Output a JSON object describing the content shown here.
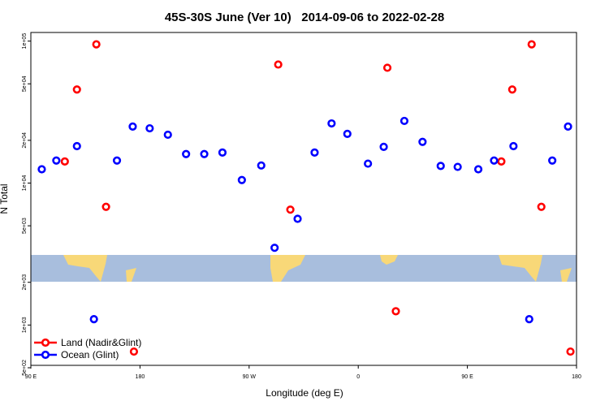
{
  "chart_data": {
    "type": "scatter",
    "title": "45S-30S June (Ver 10)   2014-09-06 to 2022-02-28",
    "x_label": "Longitude (deg E)",
    "y_label": "N Total",
    "log_y": true,
    "legend": "bottom-left",
    "xlim": [
      90,
      540
    ],
    "ylim": [
      520,
      115000
    ],
    "xticks": [
      {
        "value": 90,
        "label": "90 E"
      },
      {
        "value": 180,
        "label": "180"
      },
      {
        "value": 270,
        "label": "90 W"
      },
      {
        "value": 360,
        "label": "0"
      },
      {
        "value": 450,
        "label": "90 E"
      },
      {
        "value": 540,
        "label": "180"
      }
    ],
    "yticks": [
      {
        "value": 500,
        "label": "5e+02"
      },
      {
        "value": 1000,
        "label": "1e+03"
      },
      {
        "value": 2000,
        "label": "2e+03"
      },
      {
        "value": 5000,
        "label": "5e+03"
      },
      {
        "value": 10000,
        "label": "1e+04"
      },
      {
        "value": 20000,
        "label": "2e+04"
      },
      {
        "value": 50000,
        "label": "5e+04"
      },
      {
        "value": 100000,
        "label": "1e+05"
      }
    ],
    "series": [
      {
        "name": "Land (Nadir&Glint)",
        "color": "#ff0000",
        "x": [
          118,
          128,
          144,
          152,
          175,
          294,
          304,
          384,
          391,
          478,
          487,
          503,
          511,
          535
        ],
        "values": [
          14200,
          45600,
          94900,
          6800,
          650,
          68400,
          6500,
          64900,
          1250,
          14200,
          45600,
          94900,
          6800,
          650
        ]
      },
      {
        "name": "Ocean (Glint)",
        "color": "#0000ff",
        "x": [
          99,
          111,
          128,
          142,
          161,
          174,
          188,
          203,
          218,
          233,
          248,
          264,
          280,
          291,
          310,
          324,
          338,
          351,
          368,
          381,
          398,
          413,
          428,
          442,
          459,
          472,
          488,
          501,
          520,
          533
        ],
        "values": [
          12500,
          14400,
          18200,
          1100,
          14400,
          25000,
          24300,
          21900,
          16000,
          16000,
          16400,
          10500,
          13300,
          3500,
          5600,
          16400,
          26300,
          22200,
          13700,
          18000,
          27400,
          19500,
          13200,
          13000,
          12500,
          14400,
          18200,
          1100,
          14400,
          25000
        ]
      }
    ]
  }
}
